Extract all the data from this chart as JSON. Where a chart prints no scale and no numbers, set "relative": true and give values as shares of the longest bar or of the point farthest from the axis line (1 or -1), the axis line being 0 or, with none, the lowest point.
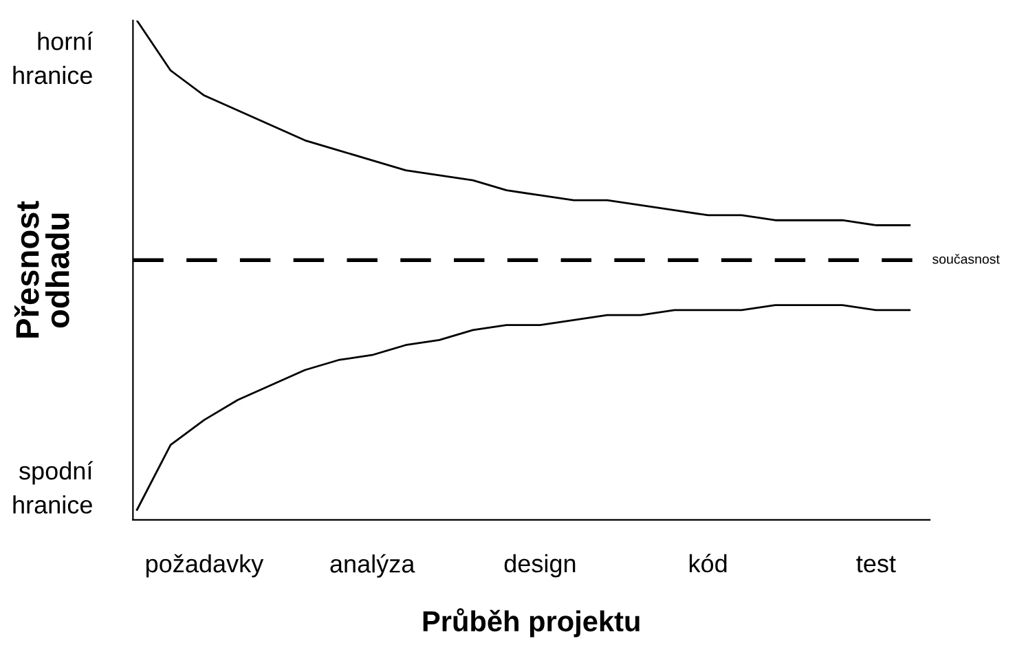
{
  "chart_data": {
    "type": "line",
    "relative": true,
    "xlabel": "Průběh projektu",
    "ylabel": "Přesnost\nodhadu",
    "categories": [
      null,
      null,
      "požadavky",
      null,
      null,
      null,
      null,
      "analýza",
      null,
      null,
      null,
      null,
      "design",
      null,
      null,
      null,
      null,
      "kód",
      null,
      null,
      null,
      null,
      "test",
      null
    ],
    "series": [
      {
        "color": "#000000",
        "values": [
          1.0,
          0.9,
          0.85,
          0.82,
          0.79,
          0.76,
          0.74,
          0.72,
          0.7,
          0.69,
          0.68,
          0.66,
          0.65,
          0.64,
          0.64,
          0.63,
          0.62,
          0.61,
          0.61,
          0.6,
          0.6,
          0.6,
          0.59,
          0.59
        ]
      },
      {
        "color": "#000000",
        "values": [
          0.02,
          0.15,
          0.2,
          0.24,
          0.27,
          0.3,
          0.32,
          0.33,
          0.35,
          0.36,
          0.38,
          0.39,
          0.39,
          0.4,
          0.41,
          0.41,
          0.42,
          0.42,
          0.42,
          0.43,
          0.43,
          0.43,
          0.42,
          0.42
        ]
      }
    ],
    "ref_lines": [
      {
        "axis": "y",
        "value": 0.52,
        "label": "současnost",
        "color": "#000000",
        "line_style": "dashed"
      }
    ],
    "annotations": [
      "horní\nhranice",
      "spodní\nhranice"
    ],
    "grid": false,
    "legend": false,
    "marker": "none",
    "line_style": "solid"
  }
}
